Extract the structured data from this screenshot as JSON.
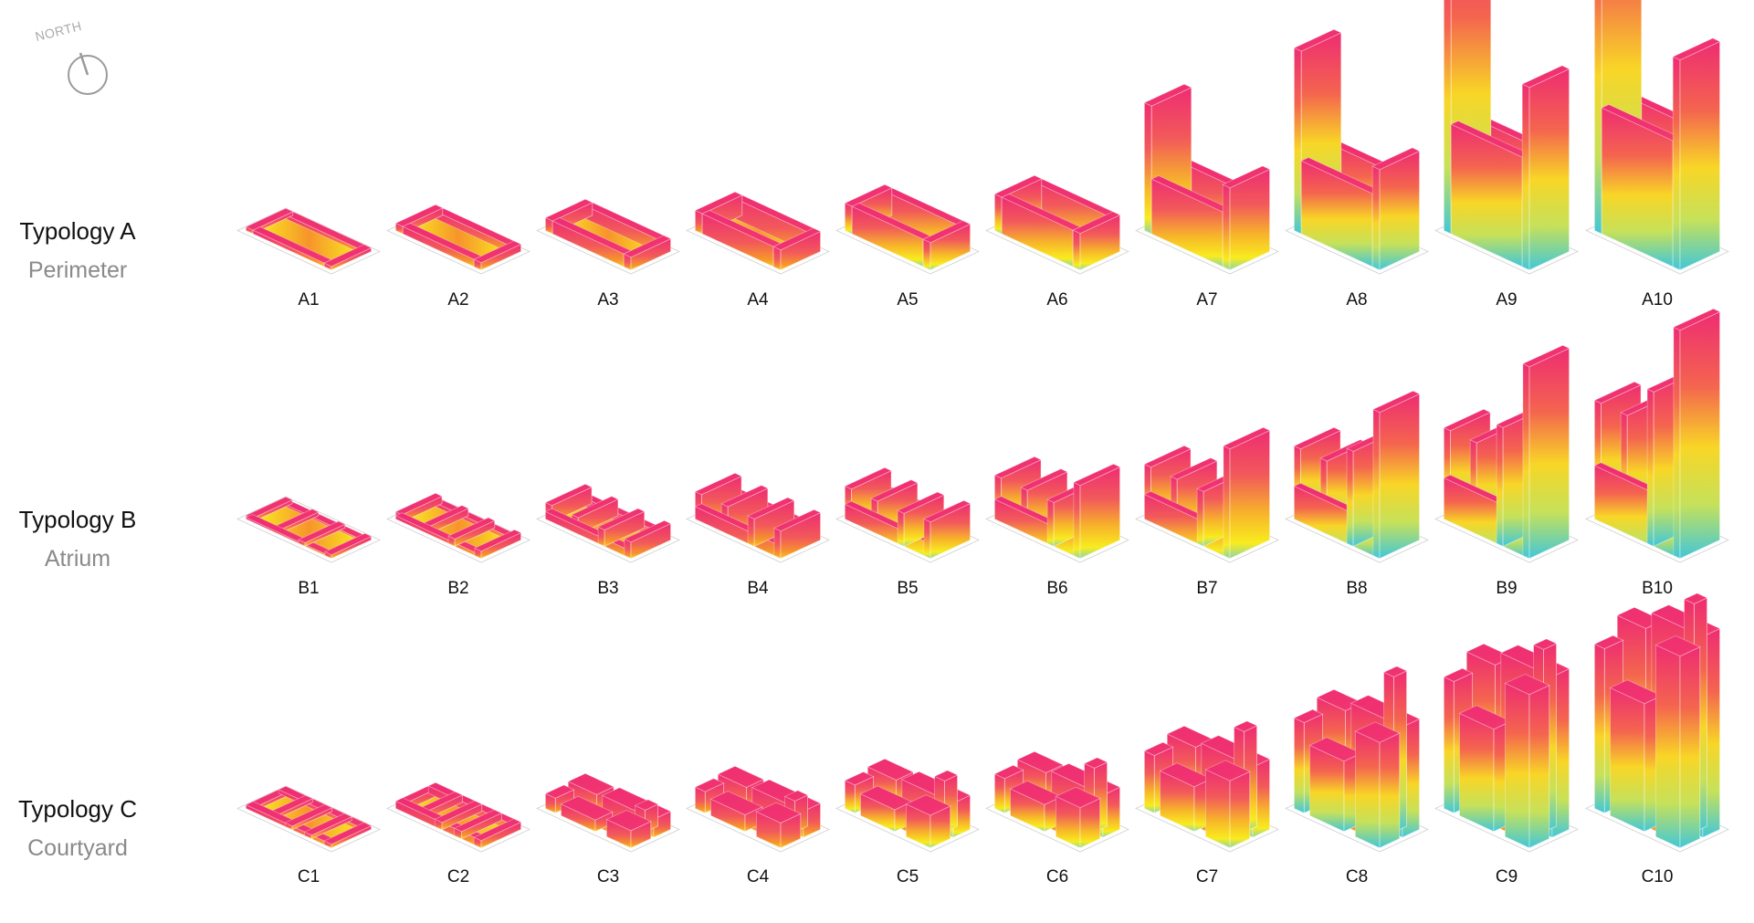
{
  "compass": {
    "label": "NORTH",
    "icon": "compass-icon"
  },
  "typologies": [
    {
      "key": "A",
      "title": "Typology A",
      "subtitle": "Perimeter",
      "items": [
        "A1",
        "A2",
        "A3",
        "A4",
        "A5",
        "A6",
        "A7",
        "A8",
        "A9",
        "A10"
      ]
    },
    {
      "key": "B",
      "title": "Typology B",
      "subtitle": "Atrium",
      "items": [
        "B1",
        "B2",
        "B3",
        "B4",
        "B5",
        "B6",
        "B7",
        "B8",
        "B9",
        "B10"
      ]
    },
    {
      "key": "C",
      "title": "Typology C",
      "subtitle": "Courtyard",
      "items": [
        "C1",
        "C2",
        "C3",
        "C4",
        "C5",
        "C6",
        "C7",
        "C8",
        "C9",
        "C10"
      ]
    }
  ],
  "colors": {
    "magenta": "#ee2d72",
    "pink_side": "#f04a78",
    "orange": "#f7942b",
    "yellow": "#f8ec1f",
    "cyan": "#42c7d8",
    "site_outline": "#cfcfcf"
  }
}
